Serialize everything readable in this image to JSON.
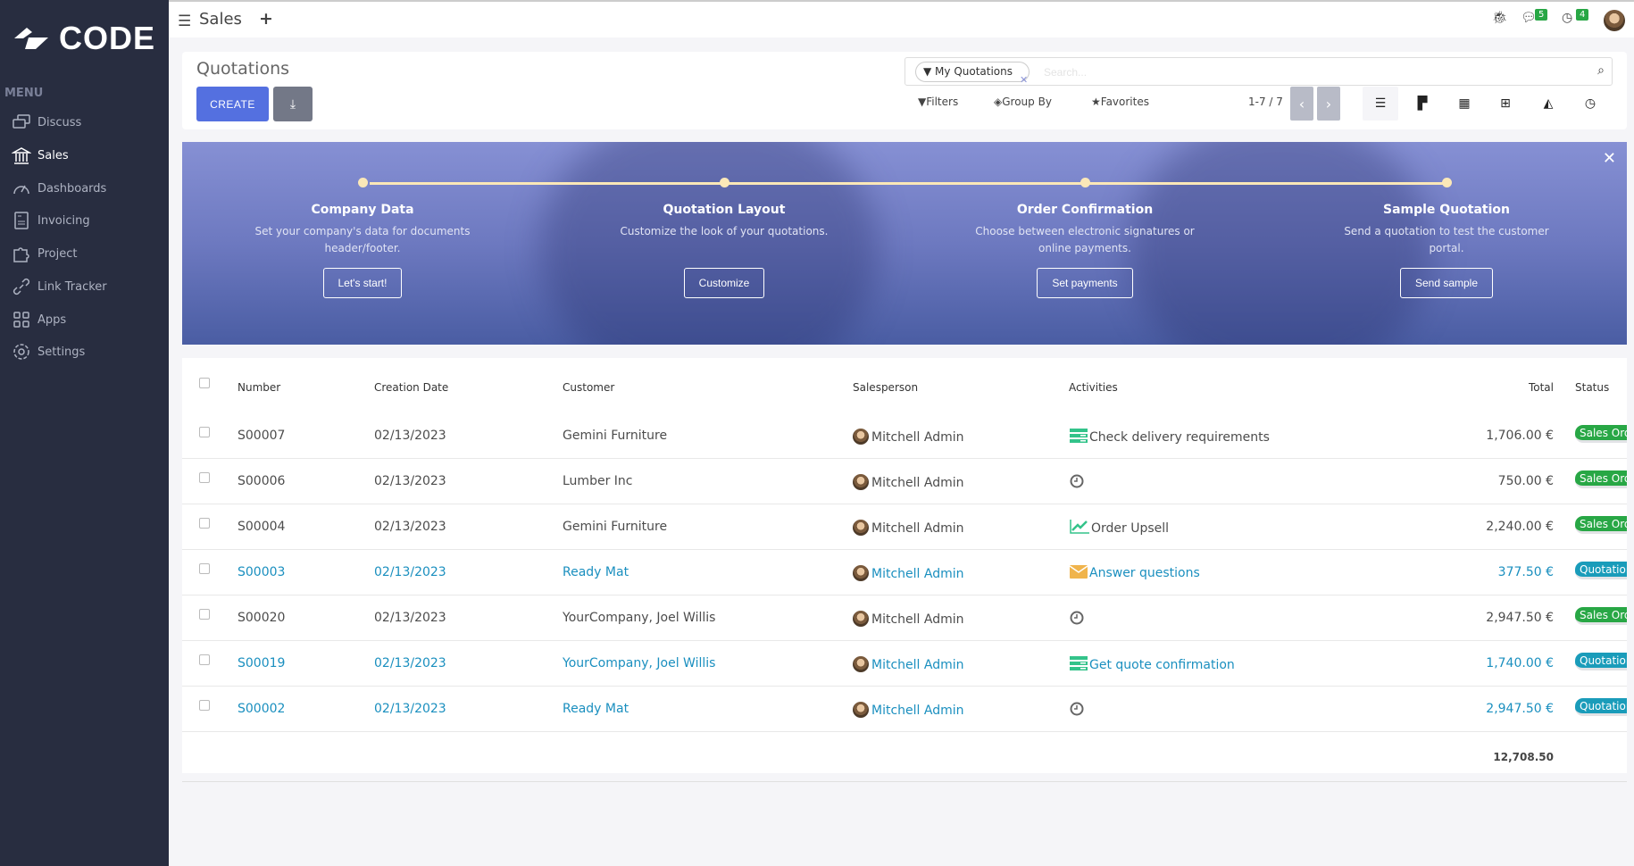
{
  "brand": {
    "logo_text": "CODE"
  },
  "sidebar": {
    "menu_heading": "MENU",
    "items": [
      {
        "label": "Discuss",
        "icon": "chat-icon"
      },
      {
        "label": "Sales",
        "icon": "bank-icon",
        "active": true
      },
      {
        "label": "Dashboards",
        "icon": "gauge-icon"
      },
      {
        "label": "Invoicing",
        "icon": "invoice-icon"
      },
      {
        "label": "Project",
        "icon": "puzzle-icon"
      },
      {
        "label": "Link Tracker",
        "icon": "link-icon"
      },
      {
        "label": "Apps",
        "icon": "apps-icon"
      },
      {
        "label": "Settings",
        "icon": "gear-icon"
      }
    ]
  },
  "topbar": {
    "app_title": "Sales",
    "messages_count": "5",
    "activities_count": "4"
  },
  "control_panel": {
    "title": "Quotations",
    "create_label": "CREATE",
    "search": {
      "facet": "My Quotations",
      "placeholder": "Search..."
    },
    "filters_label": "Filters",
    "groupby_label": "Group By",
    "favorites_label": "Favorites",
    "pager": "1-7 / 7"
  },
  "banner": {
    "steps": [
      {
        "title": "Company Data",
        "desc": "Set your company's data for documents header/footer.",
        "button": "Let's start!"
      },
      {
        "title": "Quotation Layout",
        "desc": "Customize the look of your quotations.",
        "button": "Customize"
      },
      {
        "title": "Order Confirmation",
        "desc": "Choose between electronic signatures or online payments.",
        "button": "Set payments"
      },
      {
        "title": "Sample Quotation",
        "desc": "Send a quotation to test the customer portal.",
        "button": "Send sample"
      }
    ]
  },
  "table": {
    "columns": [
      "Number",
      "Creation Date",
      "Customer",
      "Salesperson",
      "Activities",
      "Total",
      "Status"
    ],
    "rows": [
      {
        "number": "S00007",
        "date": "02/13/2023",
        "customer": "Gemini Furniture",
        "salesperson": "Mitchell Admin",
        "activity": "Check delivery requirements",
        "activity_icon": "todo-icon",
        "total": "1,706.00 €",
        "status": "Sales Order",
        "link": false
      },
      {
        "number": "S00006",
        "date": "02/13/2023",
        "customer": "Lumber Inc",
        "salesperson": "Mitchell Admin",
        "activity": "",
        "activity_icon": "clock-icon",
        "total": "750.00 €",
        "status": "Sales Order",
        "link": false
      },
      {
        "number": "S00004",
        "date": "02/13/2023",
        "customer": "Gemini Furniture",
        "salesperson": "Mitchell Admin",
        "activity": "Order Upsell",
        "activity_icon": "chart-up-icon",
        "total": "2,240.00 €",
        "status": "Sales Order",
        "link": false
      },
      {
        "number": "S00003",
        "date": "02/13/2023",
        "customer": "Ready Mat",
        "salesperson": "Mitchell Admin",
        "activity": "Answer questions",
        "activity_icon": "envelope-icon",
        "total": "377.50 €",
        "status": "Quotation",
        "link": true
      },
      {
        "number": "S00020",
        "date": "02/13/2023",
        "customer": "YourCompany, Joel Willis",
        "salesperson": "Mitchell Admin",
        "activity": "",
        "activity_icon": "clock-icon",
        "total": "2,947.50 €",
        "status": "Sales Order",
        "link": false
      },
      {
        "number": "S00019",
        "date": "02/13/2023",
        "customer": "YourCompany, Joel Willis",
        "salesperson": "Mitchell Admin",
        "activity": "Get quote confirmation",
        "activity_icon": "todo-icon",
        "total": "1,740.00 €",
        "status": "Quotation",
        "link": true
      },
      {
        "number": "S00002",
        "date": "02/13/2023",
        "customer": "Ready Mat",
        "salesperson": "Mitchell Admin",
        "activity": "",
        "activity_icon": "clock-icon",
        "total": "2,947.50 €",
        "status": "Quotation",
        "link": true
      }
    ],
    "sum_total": "12,708.50"
  },
  "colors": {
    "sidebar": "#282d40",
    "primary": "#5470e0",
    "link": "#1a8fbf",
    "sales_order": "#28a745",
    "quotation": "#1a9cba"
  }
}
